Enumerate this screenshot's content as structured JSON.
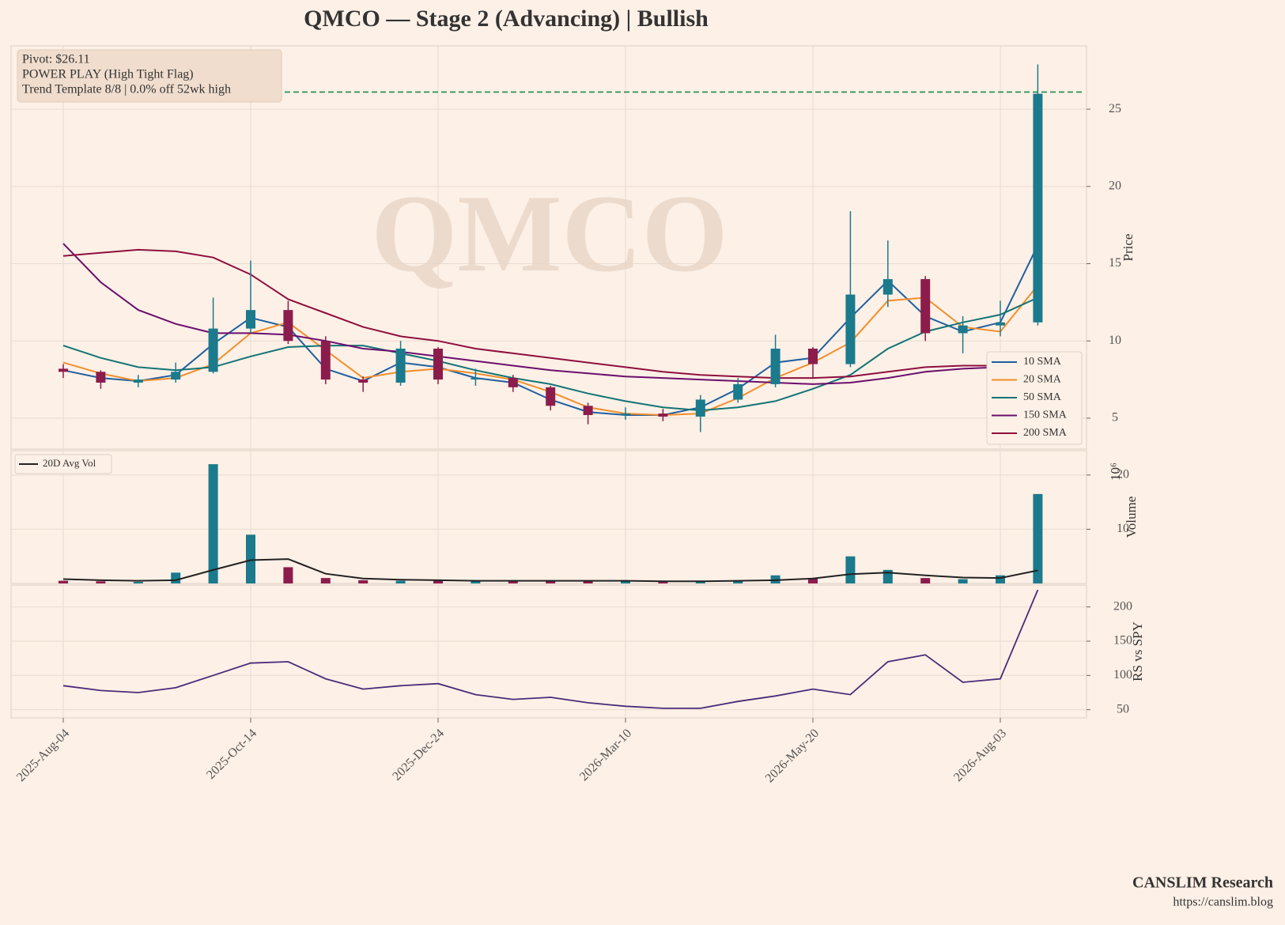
{
  "chart_data": [
    {
      "type": "candlestick",
      "title": "QMCO  —  Stage 2 (Advancing)  |  Bullish",
      "watermark": "QMCO",
      "y_label": "Price",
      "ylim": [
        3,
        29.1
      ],
      "yticks": [
        5,
        10,
        15,
        20,
        25
      ],
      "grid": true,
      "up_color": "#1b7a8c",
      "down_color": "#8c1c4c",
      "open": [
        8.2,
        8.0,
        7.3,
        7.5,
        8.0,
        10.8,
        12.0,
        10.0,
        7.5,
        7.3,
        9.5,
        7.5,
        7.6,
        7.0,
        5.8,
        5.2,
        5.3,
        5.1,
        6.2,
        7.2,
        9.5,
        8.5,
        13.0,
        14.0,
        10.5,
        11.0,
        11.2
      ],
      "high": [
        8.5,
        8.1,
        7.8,
        8.6,
        12.8,
        15.2,
        12.6,
        10.3,
        7.7,
        10.0,
        9.6,
        8.2,
        7.8,
        7.1,
        6.0,
        5.7,
        5.6,
        6.5,
        7.6,
        10.4,
        9.6,
        18.4,
        16.5,
        14.2,
        11.6,
        12.6,
        27.9
      ],
      "low": [
        7.6,
        6.9,
        7.0,
        7.3,
        7.9,
        10.5,
        9.8,
        7.2,
        6.7,
        7.1,
        7.2,
        7.1,
        6.7,
        5.5,
        4.6,
        4.9,
        4.8,
        4.1,
        6.0,
        7.0,
        7.6,
        8.3,
        12.2,
        10.0,
        9.2,
        10.3,
        11.0
      ],
      "close": [
        8.0,
        7.3,
        7.5,
        8.0,
        10.8,
        12.0,
        10.0,
        7.5,
        7.3,
        9.5,
        7.5,
        7.6,
        7.0,
        5.8,
        5.2,
        5.3,
        5.1,
        6.2,
        7.2,
        9.5,
        8.5,
        13.0,
        14.0,
        10.5,
        11.0,
        11.2,
        26.0
      ],
      "pivot": 26.11,
      "pivot_color": "#1f8a4c",
      "annotations": [
        "Pivot: $26.11",
        "POWER PLAY (High Tight Flag)",
        "Trend Template 8/8  |  0.0% off 52wk high"
      ],
      "legend": "lower right",
      "series": [
        {
          "name": "10 SMA",
          "color": "#1f5fa0",
          "values": [
            8.1,
            7.6,
            7.4,
            7.8,
            9.8,
            11.5,
            10.9,
            8.2,
            7.4,
            8.6,
            8.3,
            7.6,
            7.3,
            6.2,
            5.4,
            5.2,
            5.2,
            5.7,
            6.9,
            8.6,
            8.9,
            11.5,
            13.9,
            11.6,
            10.6,
            11.2,
            16.2
          ]
        },
        {
          "name": "20 SMA",
          "color": "#f28e2b",
          "values": [
            8.6,
            7.9,
            7.4,
            7.6,
            8.5,
            10.5,
            11.2,
            9.4,
            7.6,
            8.0,
            8.2,
            7.9,
            7.5,
            6.7,
            5.7,
            5.3,
            5.2,
            5.3,
            6.3,
            7.6,
            8.6,
            9.9,
            12.6,
            12.8,
            10.9,
            10.6,
            13.6
          ]
        },
        {
          "name": "50 SMA",
          "color": "#127475",
          "values": [
            9.7,
            8.9,
            8.3,
            8.1,
            8.3,
            9.0,
            9.6,
            9.7,
            9.7,
            9.2,
            8.7,
            8.1,
            7.6,
            7.2,
            6.6,
            6.1,
            5.7,
            5.5,
            5.7,
            6.1,
            6.9,
            7.8,
            9.5,
            10.6,
            11.2,
            11.7,
            12.8
          ]
        },
        {
          "name": "150 SMA",
          "color": "#6a0f6e",
          "values": [
            16.3,
            13.8,
            12.0,
            11.1,
            10.5,
            10.5,
            10.4,
            10.0,
            9.5,
            9.3,
            9.0,
            8.7,
            8.4,
            8.1,
            7.9,
            7.7,
            7.6,
            7.5,
            7.4,
            7.3,
            7.2,
            7.3,
            7.6,
            8.0,
            8.2,
            8.3,
            8.6
          ]
        },
        {
          "name": "200 SMA",
          "color": "#8e0f3e",
          "values": [
            15.5,
            15.7,
            15.9,
            15.8,
            15.4,
            14.3,
            12.7,
            11.8,
            10.9,
            10.3,
            10.0,
            9.5,
            9.2,
            8.9,
            8.6,
            8.3,
            8.0,
            7.8,
            7.7,
            7.6,
            7.6,
            7.7,
            8.0,
            8.3,
            8.4,
            8.4,
            8.6
          ]
        }
      ]
    },
    {
      "type": "bar",
      "y_label": "Volume",
      "scale_label": "10⁶",
      "ylim": [
        0,
        24.5
      ],
      "yticks": [
        10,
        20
      ],
      "grid": true,
      "legend": "upper left",
      "values": [
        0.5,
        0.4,
        0.3,
        2.0,
        22.0,
        9.0,
        3.0,
        1.0,
        0.6,
        0.5,
        0.5,
        0.4,
        0.4,
        0.5,
        0.4,
        0.5,
        0.3,
        0.4,
        0.5,
        1.5,
        1.0,
        5.0,
        2.5,
        1.0,
        0.8,
        1.5,
        16.5
      ],
      "series": [
        {
          "name": "20D Avg Vol",
          "color": "#222222",
          "values": [
            0.8,
            0.6,
            0.5,
            0.6,
            2.5,
            4.3,
            4.5,
            1.8,
            0.9,
            0.7,
            0.6,
            0.5,
            0.5,
            0.5,
            0.5,
            0.5,
            0.4,
            0.4,
            0.5,
            0.6,
            0.9,
            1.7,
            2.0,
            1.5,
            1.1,
            1.0,
            2.4
          ]
        }
      ]
    },
    {
      "type": "line",
      "y_label": "RS vs SPY",
      "ylim": [
        38,
        232
      ],
      "yticks": [
        50,
        100,
        150,
        200
      ],
      "grid": true,
      "categories": [
        "2025-Aug-04",
        null,
        null,
        null,
        null,
        "2025-Oct-14",
        null,
        null,
        null,
        null,
        "2025-Dec-24",
        null,
        null,
        null,
        null,
        "2026-Mar-10",
        null,
        null,
        null,
        null,
        "2026-May-20",
        null,
        null,
        null,
        null,
        "2026-Aug-03",
        null
      ],
      "series": [
        {
          "name": "RS vs SPY",
          "color": "#4b2a7a",
          "values": [
            85,
            78,
            75,
            82,
            100,
            118,
            120,
            95,
            80,
            85,
            88,
            72,
            65,
            68,
            60,
            55,
            52,
            52,
            62,
            70,
            80,
            72,
            120,
            130,
            90,
            95,
            225
          ]
        }
      ]
    }
  ],
  "footer": {
    "brand": "CANSLIM Research",
    "url": "https://canslim.blog"
  }
}
